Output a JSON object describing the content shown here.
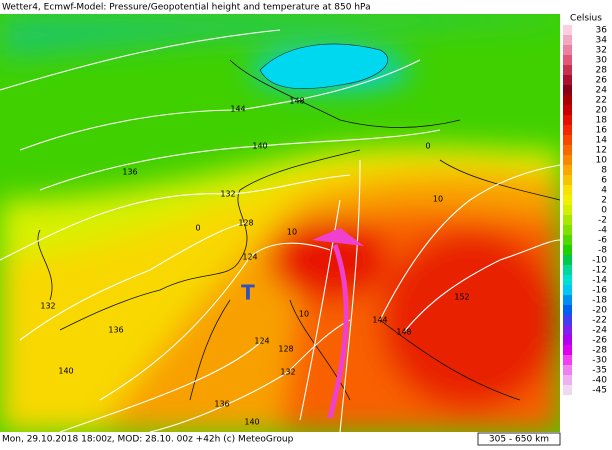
{
  "header": {
    "title": "Wetter4, Ecmwf-Model: Pressure/Geopotential height and temperature at 850 hPa"
  },
  "footer": {
    "text": "Mon, 29.10.2018 18:00z, MOD: 28.10. 00z +42h (c) MeteoGroup",
    "scale": "305 - 650 km"
  },
  "legend": {
    "unit": "Celsius",
    "items": [
      {
        "label": 36,
        "color": "#f8d0e0"
      },
      {
        "label": 34,
        "color": "#f4a8c0"
      },
      {
        "label": 32,
        "color": "#ec80a0"
      },
      {
        "label": 30,
        "color": "#e05878"
      },
      {
        "label": 28,
        "color": "#c83050"
      },
      {
        "label": 26,
        "color": "#a81030"
      },
      {
        "label": 24,
        "color": "#880018"
      },
      {
        "label": 22,
        "color": "#a80000"
      },
      {
        "label": 20,
        "color": "#c80000"
      },
      {
        "label": 18,
        "color": "#e41000"
      },
      {
        "label": 16,
        "color": "#f42800"
      },
      {
        "label": 14,
        "color": "#f84800"
      },
      {
        "label": 12,
        "color": "#f86800"
      },
      {
        "label": 10,
        "color": "#f88800"
      },
      {
        "label": 8,
        "color": "#f8a800"
      },
      {
        "label": 6,
        "color": "#f8c400"
      },
      {
        "label": 4,
        "color": "#f8e000"
      },
      {
        "label": 2,
        "color": "#f0f000"
      },
      {
        "label": 0,
        "color": "#d0f000"
      },
      {
        "label": -2,
        "color": "#a8e800"
      },
      {
        "label": -4,
        "color": "#80e000"
      },
      {
        "label": -6,
        "color": "#50d800"
      },
      {
        "label": -8,
        "color": "#20d000"
      },
      {
        "label": -10,
        "color": "#00c848"
      },
      {
        "label": -12,
        "color": "#00d898"
      },
      {
        "label": -14,
        "color": "#00e0d0"
      },
      {
        "label": -16,
        "color": "#00c8f0"
      },
      {
        "label": -18,
        "color": "#0090f0"
      },
      {
        "label": -20,
        "color": "#0060f0"
      },
      {
        "label": -22,
        "color": "#4040f0"
      },
      {
        "label": -24,
        "color": "#8020f0"
      },
      {
        "label": -26,
        "color": "#b000f0"
      },
      {
        "label": -28,
        "color": "#e000f0"
      },
      {
        "label": -30,
        "color": "#f040f0"
      },
      {
        "label": -35,
        "color": "#f080f0"
      },
      {
        "label": -40,
        "color": "#f0b0f0"
      },
      {
        "label": -45,
        "color": "#f0d8f0"
      }
    ]
  },
  "map": {
    "contour_labels": [
      144,
      148,
      140,
      136,
      132,
      128,
      124,
      132,
      136,
      140,
      124,
      128,
      132,
      136,
      140,
      144,
      148,
      152,
      10,
      10,
      10,
      0,
      0
    ],
    "low_marker": "T"
  }
}
